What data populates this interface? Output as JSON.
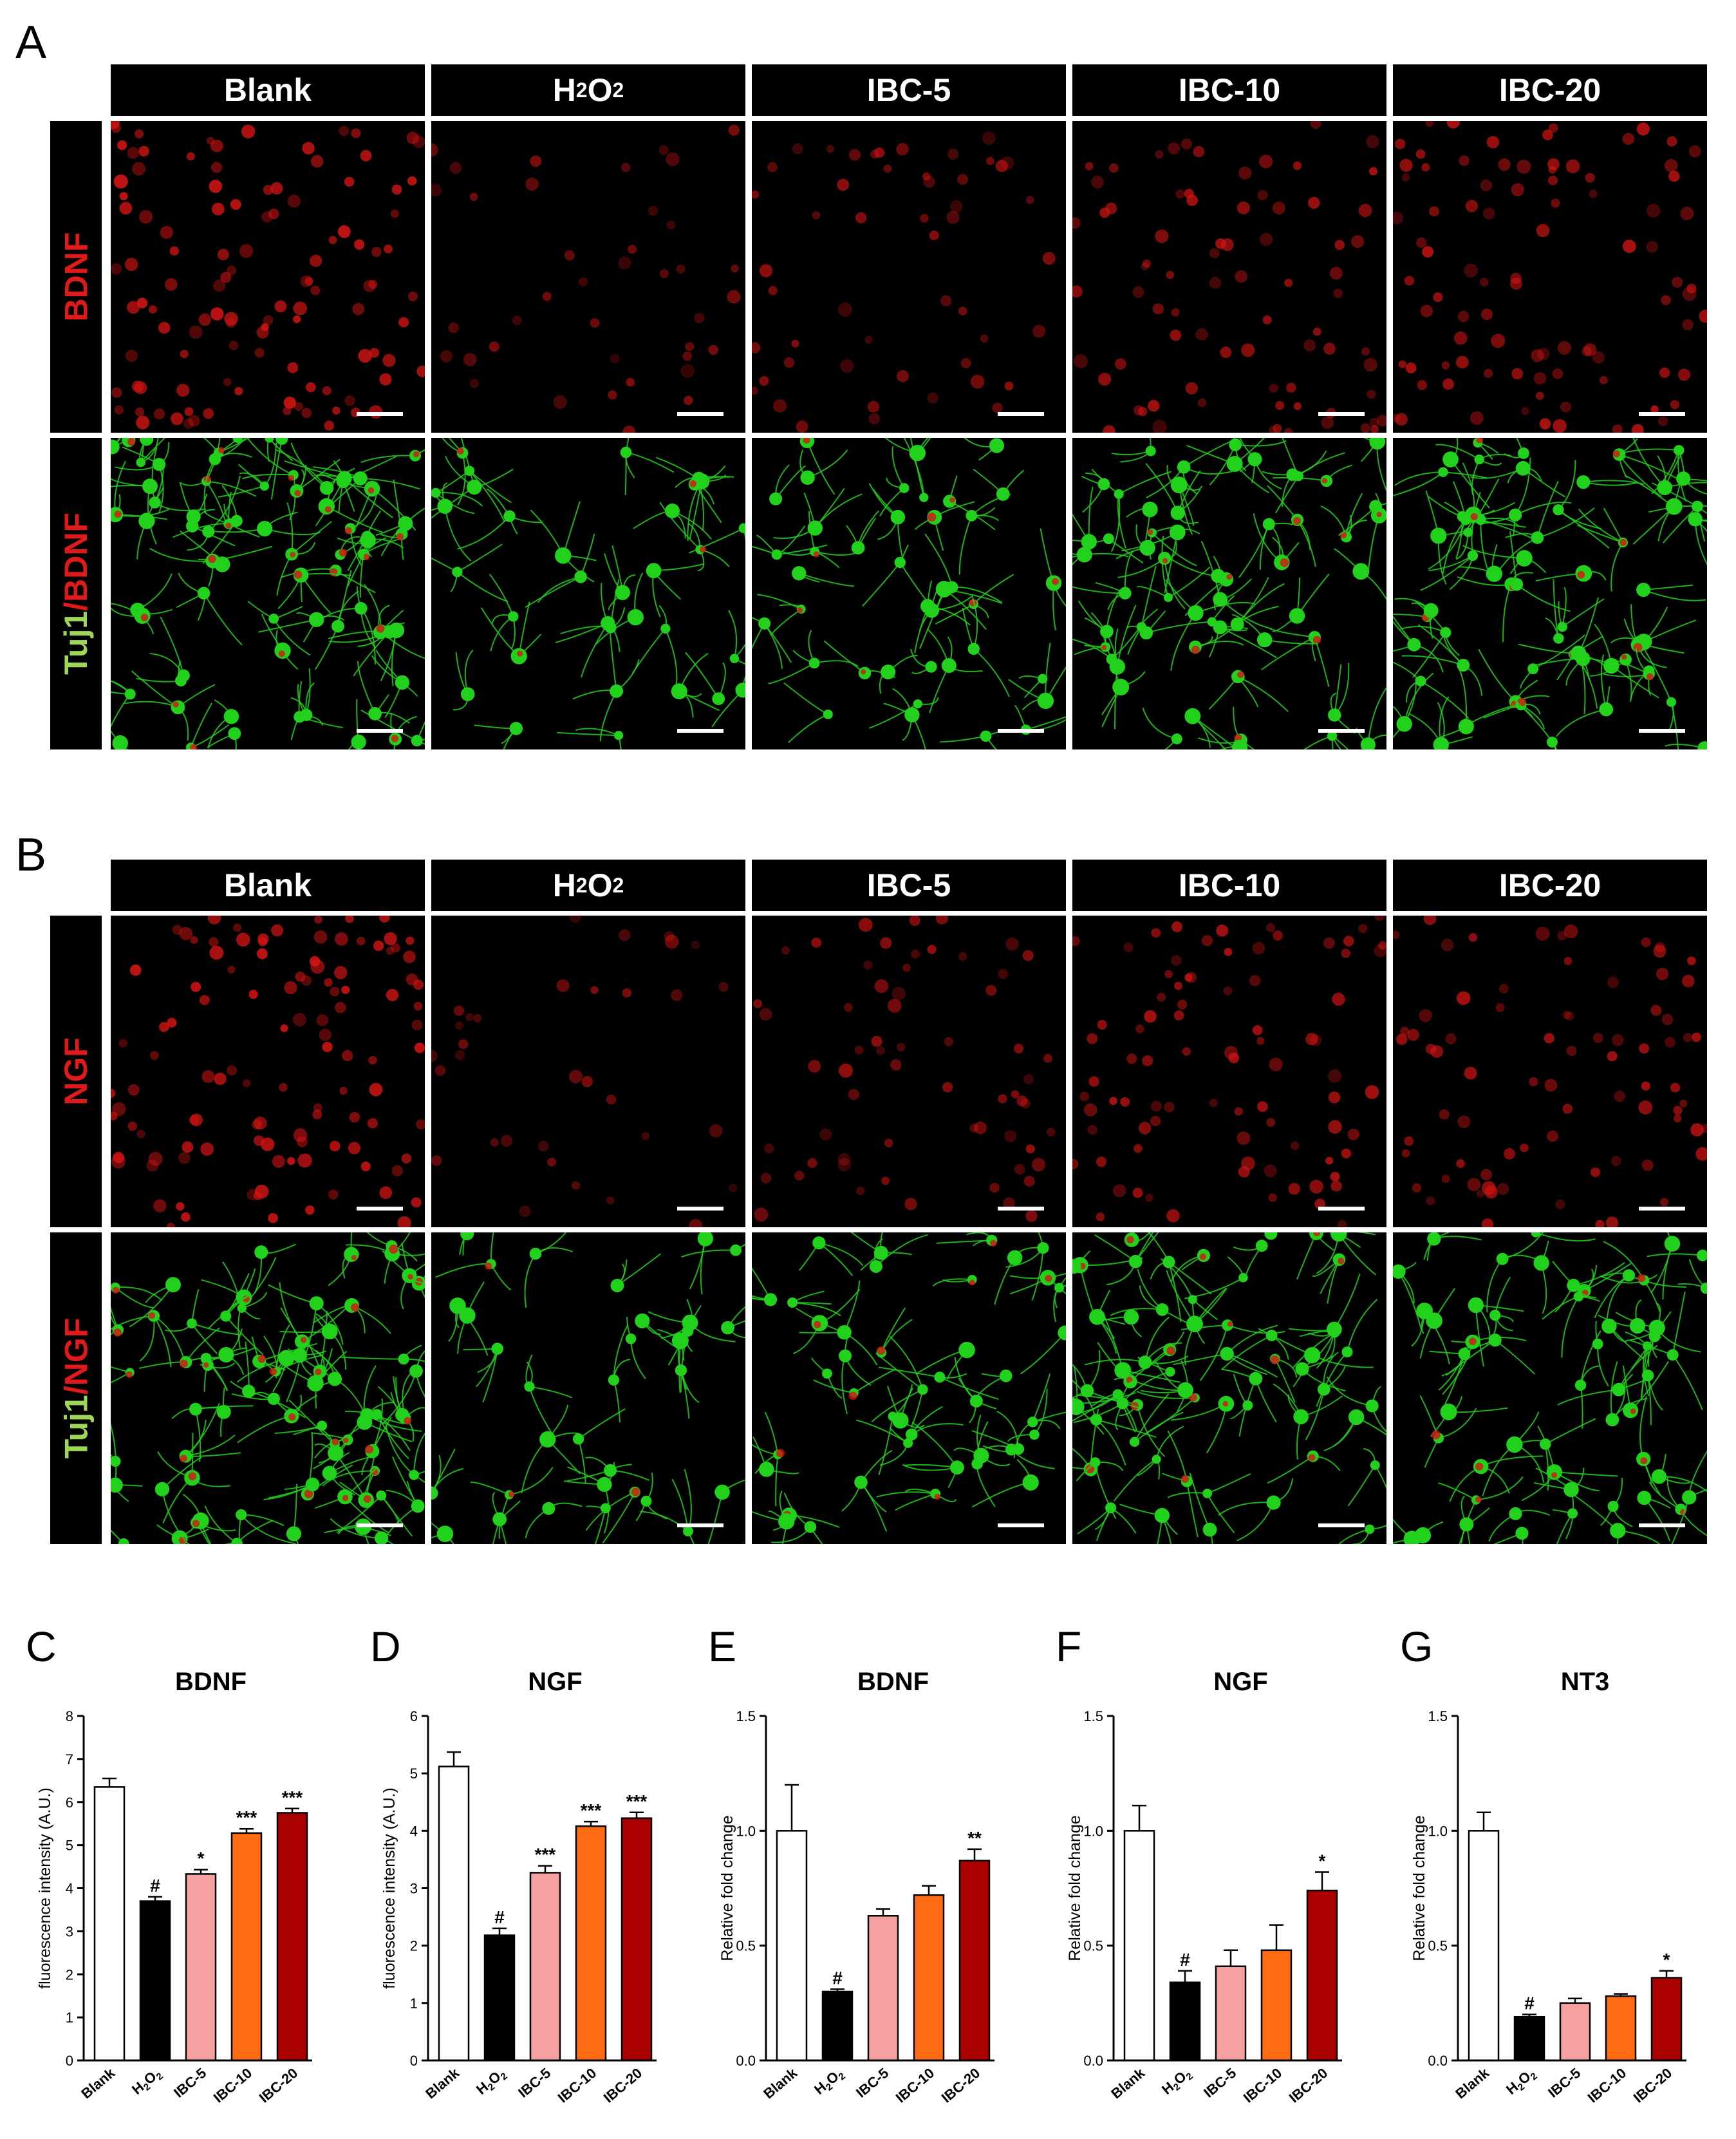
{
  "figure": {
    "panel_a": {
      "letter": "A",
      "columns": [
        "Blank",
        "H2O2",
        "IBC-5",
        "IBC-10",
        "IBC-20"
      ],
      "rows": [
        {
          "label_parts": [
            {
              "text": "BDNF",
              "color": "#e0191b"
            }
          ],
          "kind": "red"
        },
        {
          "label_parts": [
            {
              "text": "Tuj1",
              "color": "#9fd65a"
            },
            {
              "text": "/BDNF",
              "color": "#e0191b"
            }
          ],
          "kind": "merge"
        }
      ]
    },
    "panel_b": {
      "letter": "B",
      "columns": [
        "Blank",
        "H2O2",
        "IBC-5",
        "IBC-10",
        "IBC-20"
      ],
      "rows": [
        {
          "label_parts": [
            {
              "text": "NGF",
              "color": "#e0191b"
            }
          ],
          "kind": "red"
        },
        {
          "label_parts": [
            {
              "text": "Tuj1",
              "color": "#9fd65a"
            },
            {
              "text": "/NGF",
              "color": "#e0191b"
            }
          ],
          "kind": "merge"
        }
      ]
    },
    "colors": {
      "blank": "#ffffff",
      "h2o2": "#000000",
      "ibc5": "#f6a1a1",
      "ibc10": "#ff6b13",
      "ibc20": "#aa0000",
      "cell_red": "#d31414",
      "cell_green": "#22d11c"
    }
  },
  "chart_data": [
    {
      "panel": "C",
      "type": "bar",
      "title": "BDNF",
      "ylabel": "fluorescence intensity (A.U.)",
      "categories": [
        "Blank",
        "H2O2",
        "IBC-5",
        "IBC-10",
        "IBC-20"
      ],
      "values": [
        6.35,
        3.7,
        4.33,
        5.28,
        5.75
      ],
      "errors": [
        0.2,
        0.1,
        0.1,
        0.1,
        0.1
      ],
      "significance": [
        "",
        "#",
        "*",
        "***",
        "***"
      ],
      "ylim": [
        0,
        8
      ],
      "yticks": [
        "0",
        "1",
        "2",
        "3",
        "4",
        "5",
        "6",
        "7",
        "8"
      ],
      "ytick_values": [
        0,
        1,
        2,
        3,
        4,
        5,
        6,
        7,
        8
      ]
    },
    {
      "panel": "D",
      "type": "bar",
      "title": "NGF",
      "ylabel": "fluorescence intensity (A.U.)",
      "categories": [
        "Blank",
        "H2O2",
        "IBC-5",
        "IBC-10",
        "IBC-20"
      ],
      "values": [
        5.12,
        2.18,
        3.27,
        4.08,
        4.22
      ],
      "errors": [
        0.25,
        0.12,
        0.12,
        0.08,
        0.1
      ],
      "significance": [
        "",
        "#",
        "***",
        "***",
        "***"
      ],
      "ylim": [
        0,
        6
      ],
      "yticks": [
        "0",
        "1",
        "2",
        "3",
        "4",
        "5",
        "6"
      ],
      "ytick_values": [
        0,
        1,
        2,
        3,
        4,
        5,
        6
      ]
    },
    {
      "panel": "E",
      "type": "bar",
      "title": "BDNF",
      "ylabel": "Relative fold change",
      "categories": [
        "Blank",
        "H2O2",
        "IBC-5",
        "IBC-10",
        "IBC-20"
      ],
      "values": [
        1.0,
        0.3,
        0.63,
        0.72,
        0.87
      ],
      "errors": [
        0.2,
        0.01,
        0.03,
        0.04,
        0.05
      ],
      "significance": [
        "",
        "#",
        "",
        "",
        "**"
      ],
      "ylim": [
        0,
        1.5
      ],
      "yticks": [
        "0.0",
        "0.5",
        "1.0",
        "1.5"
      ],
      "ytick_values": [
        0,
        0.5,
        1.0,
        1.5
      ]
    },
    {
      "panel": "F",
      "type": "bar",
      "title": "NGF",
      "ylabel": "Relative fold change",
      "categories": [
        "Blank",
        "H2O2",
        "IBC-5",
        "IBC-10",
        "IBC-20"
      ],
      "values": [
        1.0,
        0.34,
        0.41,
        0.48,
        0.74
      ],
      "errors": [
        0.11,
        0.05,
        0.07,
        0.11,
        0.08
      ],
      "significance": [
        "",
        "#",
        "",
        "",
        "*"
      ],
      "ylim": [
        0,
        1.5
      ],
      "yticks": [
        "0.0",
        "0.5",
        "1.0",
        "1.5"
      ],
      "ytick_values": [
        0,
        0.5,
        1.0,
        1.5
      ]
    },
    {
      "panel": "G",
      "type": "bar",
      "title": "NT3",
      "ylabel": "Relative fold change",
      "categories": [
        "Blank",
        "H2O2",
        "IBC-5",
        "IBC-10",
        "IBC-20"
      ],
      "values": [
        1.0,
        0.19,
        0.25,
        0.28,
        0.36
      ],
      "errors": [
        0.08,
        0.01,
        0.02,
        0.01,
        0.03
      ],
      "significance": [
        "",
        "#",
        "",
        "",
        "*"
      ],
      "ylim": [
        0,
        1.5
      ],
      "yticks": [
        "0.0",
        "0.5",
        "1.0",
        "1.5"
      ],
      "ytick_values": [
        0,
        0.5,
        1.0,
        1.5
      ]
    }
  ]
}
